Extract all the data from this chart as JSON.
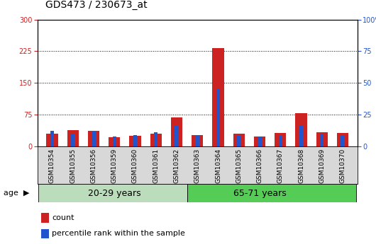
{
  "title": "GDS473 / 230673_at",
  "samples": [
    "GSM10354",
    "GSM10355",
    "GSM10356",
    "GSM10359",
    "GSM10360",
    "GSM10361",
    "GSM10362",
    "GSM10363",
    "GSM10364",
    "GSM10365",
    "GSM10366",
    "GSM10367",
    "GSM10368",
    "GSM10369",
    "GSM10370"
  ],
  "count": [
    30,
    38,
    37,
    22,
    25,
    30,
    68,
    27,
    233,
    30,
    24,
    32,
    79,
    33,
    32
  ],
  "percentile": [
    12,
    10,
    12,
    8,
    9,
    11,
    16,
    9,
    45,
    9,
    8,
    9,
    17,
    10,
    9
  ],
  "group1_label": "20-29 years",
  "group2_label": "65-71 years",
  "group1_count": 7,
  "group2_count": 8,
  "left_yticks": [
    0,
    75,
    150,
    225,
    300
  ],
  "right_yticks": [
    0,
    25,
    50,
    75,
    100
  ],
  "left_ylim": [
    0,
    300
  ],
  "right_ylim": [
    0,
    100
  ],
  "count_color": "#cc2222",
  "percentile_color": "#2255cc",
  "group1_bg": "#bbddbb",
  "group2_bg": "#55cc55",
  "age_label": "age",
  "legend_count": "count",
  "legend_percentile": "percentile rank within the sample",
  "title_fontsize": 10,
  "tick_fontsize": 7,
  "label_fontsize": 8,
  "group_fontsize": 9
}
